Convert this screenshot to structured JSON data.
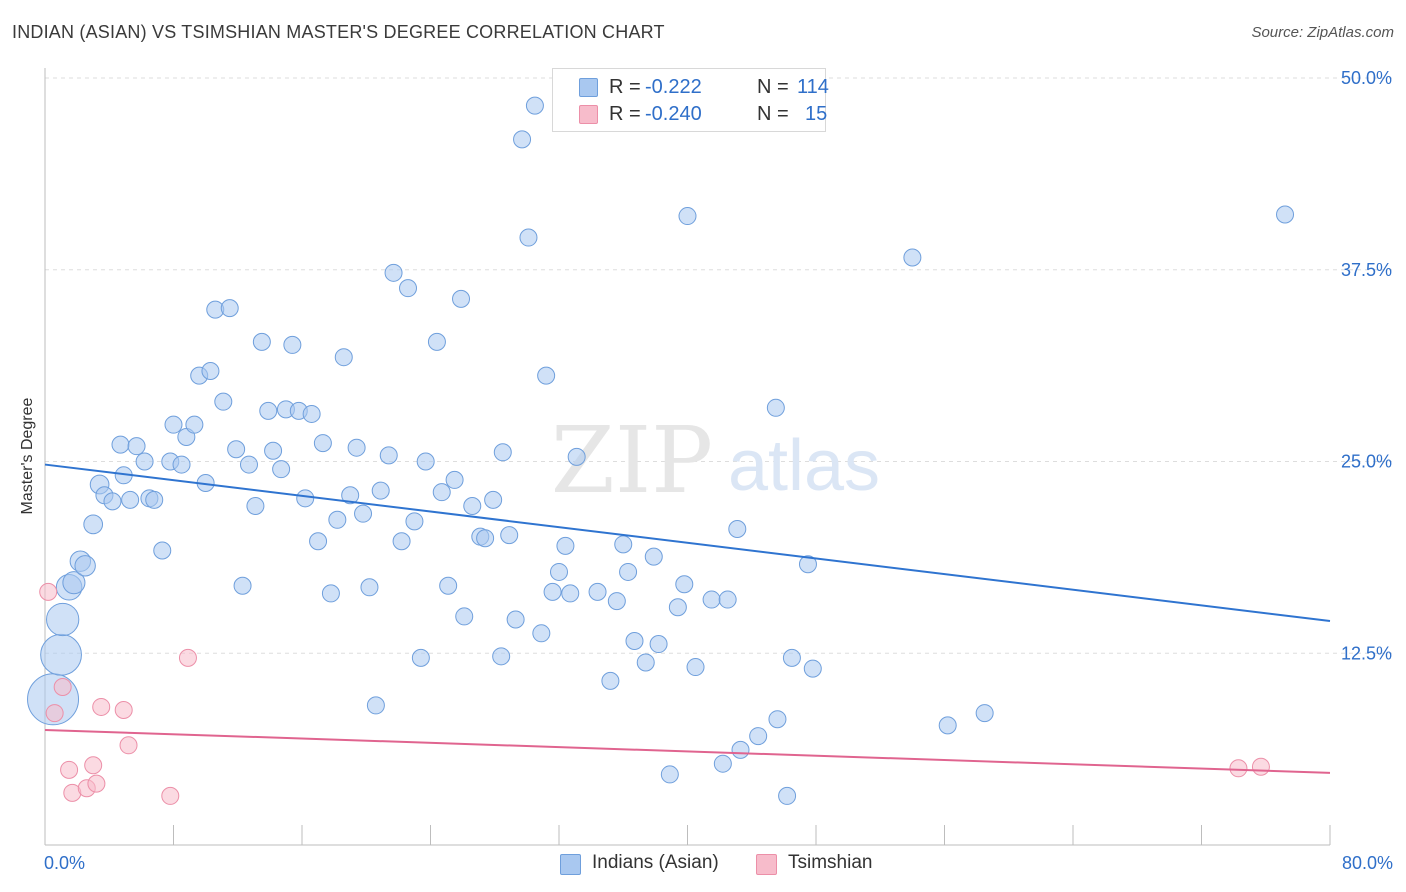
{
  "header": {
    "title": "INDIAN (ASIAN) VS TSIMSHIAN MASTER'S DEGREE CORRELATION CHART",
    "source": "Source: ZipAtlas.com"
  },
  "watermark": {
    "part1": "ZIP",
    "part2": "atlas"
  },
  "legend": {
    "series": [
      {
        "r_label": "R =",
        "r_value": "-0.222",
        "n_label": "N =",
        "n_value": "114"
      },
      {
        "r_label": "R =",
        "r_value": "-0.240",
        "n_label": "N =",
        "n_value": "15"
      }
    ]
  },
  "bottom_legend": {
    "items": [
      "Indians (Asian)",
      "Tsimshian"
    ]
  },
  "colors": {
    "blue_fill": "#a9c8f0",
    "blue_stroke": "#6f9fdc",
    "blue_line": "#2f74d0",
    "pink_fill": "#f7bccb",
    "pink_stroke": "#ec8fa8",
    "pink_line": "#e0648f",
    "grid": "#dddddd",
    "tick_label": "#2f6fc9"
  },
  "chart_data": {
    "type": "scatter",
    "title": "INDIAN (ASIAN) VS TSIMSHIAN MASTER'S DEGREE CORRELATION CHART",
    "xlabel": "",
    "ylabel": "Master's Degree",
    "xlim": [
      0,
      80
    ],
    "ylim": [
      0,
      50
    ],
    "y_ticks": [
      {
        "value": 12.5,
        "label": "12.5%"
      },
      {
        "value": 25.0,
        "label": "25.0%"
      },
      {
        "value": 37.5,
        "label": "37.5%"
      },
      {
        "value": 50.0,
        "label": "50.0%"
      }
    ],
    "x_tick_labels": {
      "min": "0.0%",
      "max": "80.0%"
    },
    "x_minor_ticks": [
      0,
      8,
      16,
      24,
      32,
      40,
      48,
      56,
      64,
      72,
      80
    ],
    "series": [
      {
        "name": "Indians (Asian)",
        "r": -0.222,
        "n": 114,
        "trend": {
          "x": [
            0,
            80
          ],
          "y": [
            24.8,
            14.6
          ]
        },
        "points": [
          [
            0.5,
            9.5,
            3
          ],
          [
            1.0,
            12.4,
            2.4
          ],
          [
            1.1,
            14.7,
            1.9
          ],
          [
            1.5,
            16.8,
            1.5
          ],
          [
            1.8,
            17.1,
            1.3
          ],
          [
            2.2,
            18.5,
            1.2
          ],
          [
            2.5,
            18.2,
            1.2
          ],
          [
            3.0,
            20.9,
            1.1
          ],
          [
            3.4,
            23.5,
            1.1
          ],
          [
            3.7,
            22.8,
            1.0
          ],
          [
            4.2,
            22.4,
            1.0
          ],
          [
            4.7,
            26.1,
            1.0
          ],
          [
            4.9,
            24.1,
            1.0
          ],
          [
            5.3,
            22.5,
            1.0
          ],
          [
            5.7,
            26.0,
            1.0
          ],
          [
            6.2,
            25.0,
            1.0
          ],
          [
            6.5,
            22.6,
            1.0
          ],
          [
            6.8,
            22.5,
            1.0
          ],
          [
            7.3,
            19.2,
            1.0
          ],
          [
            7.8,
            25.0,
            1.0
          ],
          [
            8.0,
            27.4,
            1.0
          ],
          [
            8.5,
            24.8,
            1.0
          ],
          [
            8.8,
            26.6,
            1.0
          ],
          [
            9.3,
            27.4,
            1.0
          ],
          [
            9.6,
            30.6,
            1.0
          ],
          [
            10.0,
            23.6,
            1.0
          ],
          [
            10.3,
            30.9,
            1.0
          ],
          [
            10.6,
            34.9,
            1.0
          ],
          [
            11.1,
            28.9,
            1.0
          ],
          [
            11.5,
            35.0,
            1.0
          ],
          [
            11.9,
            25.8,
            1.0
          ],
          [
            12.3,
            16.9,
            1.0
          ],
          [
            12.7,
            24.8,
            1.0
          ],
          [
            13.1,
            22.1,
            1.0
          ],
          [
            13.5,
            32.8,
            1.0
          ],
          [
            13.9,
            28.3,
            1.0
          ],
          [
            14.2,
            25.7,
            1.0
          ],
          [
            14.7,
            24.5,
            1.0
          ],
          [
            15.0,
            28.4,
            1.0
          ],
          [
            15.4,
            32.6,
            1.0
          ],
          [
            15.8,
            28.3,
            1.0
          ],
          [
            16.2,
            22.6,
            1.0
          ],
          [
            16.6,
            28.1,
            1.0
          ],
          [
            17.0,
            19.8,
            1.0
          ],
          [
            17.3,
            26.2,
            1.0
          ],
          [
            17.8,
            16.4,
            1.0
          ],
          [
            18.2,
            21.2,
            1.0
          ],
          [
            18.6,
            31.8,
            1.0
          ],
          [
            19.0,
            22.8,
            1.0
          ],
          [
            19.4,
            25.9,
            1.0
          ],
          [
            19.8,
            21.6,
            1.0
          ],
          [
            20.2,
            16.8,
            1.0
          ],
          [
            20.6,
            9.1,
            1.0
          ],
          [
            20.9,
            23.1,
            1.0
          ],
          [
            21.4,
            25.4,
            1.0
          ],
          [
            21.7,
            37.3,
            1.0
          ],
          [
            22.2,
            19.8,
            1.0
          ],
          [
            22.6,
            36.3,
            1.0
          ],
          [
            23.0,
            21.1,
            1.0
          ],
          [
            23.4,
            12.2,
            1.0
          ],
          [
            23.7,
            25.0,
            1.0
          ],
          [
            24.4,
            32.8,
            1.0
          ],
          [
            24.7,
            23.0,
            1.0
          ],
          [
            25.1,
            16.9,
            1.0
          ],
          [
            25.5,
            23.8,
            1.0
          ],
          [
            25.9,
            35.6,
            1.0
          ],
          [
            26.1,
            14.9,
            1.0
          ],
          [
            26.6,
            22.1,
            1.0
          ],
          [
            27.1,
            20.1,
            1.0
          ],
          [
            27.4,
            20.0,
            1.0
          ],
          [
            27.9,
            22.5,
            1.0
          ],
          [
            28.4,
            12.3,
            1.0
          ],
          [
            28.5,
            25.6,
            1.0
          ],
          [
            28.9,
            20.2,
            1.0
          ],
          [
            29.3,
            14.7,
            1.0
          ],
          [
            29.7,
            46.0,
            1.0
          ],
          [
            30.1,
            39.6,
            1.0
          ],
          [
            30.5,
            48.2,
            1.0
          ],
          [
            30.9,
            13.8,
            1.0
          ],
          [
            31.2,
            30.6,
            1.0
          ],
          [
            31.6,
            16.5,
            1.0
          ],
          [
            32.0,
            17.8,
            1.0
          ],
          [
            32.4,
            19.5,
            1.0
          ],
          [
            32.7,
            16.4,
            1.0
          ],
          [
            33.1,
            25.3,
            1.0
          ],
          [
            34.4,
            16.5,
            1.0
          ],
          [
            35.2,
            10.7,
            1.0
          ],
          [
            35.6,
            15.9,
            1.0
          ],
          [
            36.0,
            19.6,
            1.0
          ],
          [
            36.3,
            17.8,
            1.0
          ],
          [
            36.7,
            13.3,
            1.0
          ],
          [
            37.4,
            11.9,
            1.0
          ],
          [
            37.9,
            18.8,
            1.0
          ],
          [
            38.2,
            13.1,
            1.0
          ],
          [
            38.9,
            4.6,
            1.0
          ],
          [
            39.4,
            15.5,
            1.0
          ],
          [
            39.8,
            17.0,
            1.0
          ],
          [
            40.0,
            41.0,
            1.0
          ],
          [
            40.5,
            11.6,
            1.0
          ],
          [
            41.5,
            16.0,
            1.0
          ],
          [
            42.2,
            5.3,
            1.0
          ],
          [
            42.5,
            16.0,
            1.0
          ],
          [
            43.1,
            20.6,
            1.0
          ],
          [
            43.3,
            6.2,
            1.0
          ],
          [
            44.4,
            7.1,
            1.0
          ],
          [
            45.5,
            28.5,
            1.0
          ],
          [
            45.6,
            8.2,
            1.0
          ],
          [
            46.2,
            3.2,
            1.0
          ],
          [
            46.5,
            12.2,
            1.0
          ],
          [
            47.5,
            18.3,
            1.0
          ],
          [
            47.8,
            11.5,
            1.0
          ],
          [
            54.0,
            38.3,
            1.0
          ],
          [
            56.2,
            7.8,
            1.0
          ],
          [
            58.5,
            8.6,
            1.0
          ],
          [
            77.2,
            41.1,
            1.0
          ]
        ]
      },
      {
        "name": "Tsimshian",
        "r": -0.24,
        "n": 15,
        "trend": {
          "x": [
            0,
            80
          ],
          "y": [
            7.5,
            4.7
          ]
        },
        "points": [
          [
            0.2,
            16.5,
            1.0
          ],
          [
            0.6,
            8.6,
            1.0
          ],
          [
            1.1,
            10.3,
            1.0
          ],
          [
            1.5,
            4.9,
            1.0
          ],
          [
            1.7,
            3.4,
            1.0
          ],
          [
            2.6,
            3.7,
            1.0
          ],
          [
            3.0,
            5.2,
            1.0
          ],
          [
            3.2,
            4.0,
            1.0
          ],
          [
            3.5,
            9.0,
            1.0
          ],
          [
            4.9,
            8.8,
            1.0
          ],
          [
            5.2,
            6.5,
            1.0
          ],
          [
            7.8,
            3.2,
            1.0
          ],
          [
            8.9,
            12.2,
            1.0
          ],
          [
            74.3,
            5.0,
            1.0
          ],
          [
            75.7,
            5.1,
            1.0
          ]
        ]
      }
    ]
  }
}
